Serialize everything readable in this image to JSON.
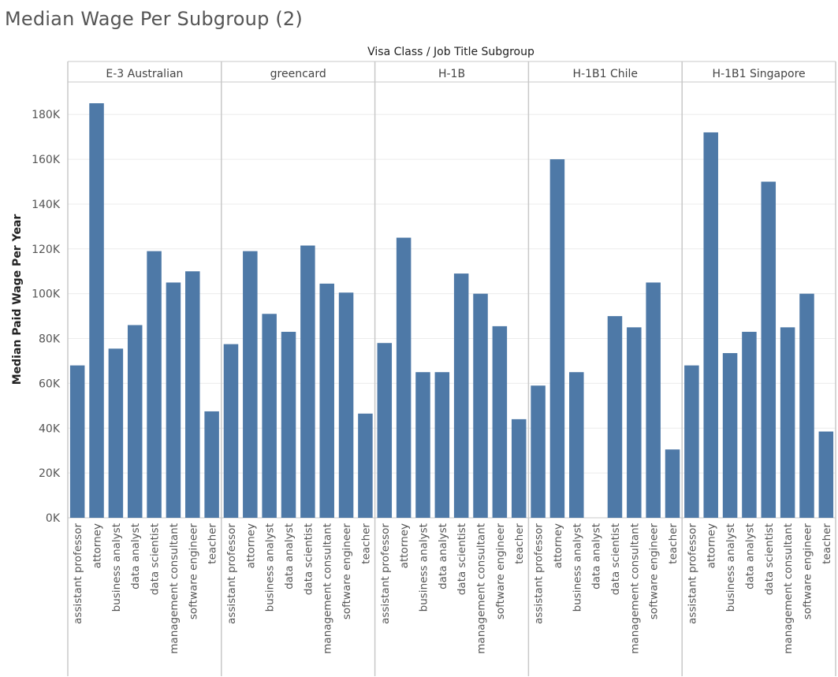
{
  "title": "Median Wage Per Subgroup (2)",
  "header_title": "Visa Class  /  Job Title Subgroup",
  "colors": {
    "bar": "#4e79a7",
    "grid": "#ececec",
    "rule": "#c8c8c8",
    "tick_text": "#555555"
  },
  "chart_data": {
    "type": "bar",
    "title": "Median Wage Per Subgroup (2)",
    "xlabel": "Visa Class  /  Job Title Subgroup",
    "ylabel": "Median Paid Wage Per Year",
    "ylim": [
      0,
      185000
    ],
    "yticks": [
      0,
      20000,
      40000,
      60000,
      80000,
      100000,
      120000,
      140000,
      160000,
      180000
    ],
    "ytick_labels": [
      "0K",
      "20K",
      "40K",
      "60K",
      "80K",
      "100K",
      "120K",
      "140K",
      "160K",
      "180K"
    ],
    "grid": true,
    "categories": [
      "assistant professor",
      "attorney",
      "business analyst",
      "data analyst",
      "data scientist",
      "management consultant",
      "software engineer",
      "teacher"
    ],
    "panels": [
      {
        "name": "E-3 Australian",
        "values": [
          68000,
          185000,
          75500,
          86000,
          119000,
          105000,
          110000,
          47500
        ]
      },
      {
        "name": "greencard",
        "values": [
          77500,
          119000,
          91000,
          83000,
          121500,
          104500,
          100500,
          46500
        ]
      },
      {
        "name": "H-1B",
        "values": [
          78000,
          125000,
          65000,
          65000,
          109000,
          100000,
          85500,
          44000
        ]
      },
      {
        "name": "H-1B1 Chile",
        "values": [
          59000,
          160000,
          65000,
          90000,
          85000,
          105000,
          30500,
          null
        ],
        "order": [
          "assistant professor",
          "attorney",
          "business analyst",
          "data scientist",
          "management consultant",
          "software engineer",
          "teacher"
        ]
      },
      {
        "name": "H-1B1 Singapore",
        "values": [
          68000,
          172000,
          73500,
          83000,
          150000,
          85000,
          100000,
          38500
        ]
      }
    ]
  }
}
